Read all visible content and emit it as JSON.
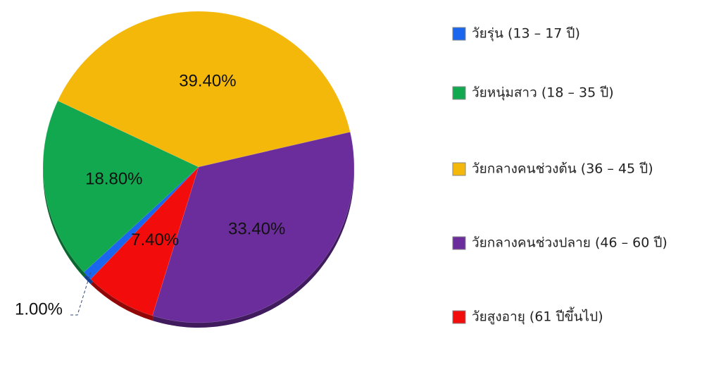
{
  "chart_data": {
    "type": "pie",
    "categories": [
      "วัยรุ่น (13 – 17 ปี)",
      "วัยหนุ่มสาว (18 – 35 ปี)",
      "วัยกลางคนช่วงต้น (36 – 45 ปี)",
      "วัยกลางคนช่วงปลาย (46 – 60 ปี)",
      "วัยสูงอายุ (61 ปีขึ้นไป)"
    ],
    "values": [
      1.0,
      18.8,
      39.4,
      33.4,
      7.4
    ],
    "value_labels": [
      "1.00%",
      "18.80%",
      "39.40%",
      "33.40%",
      "7.40%"
    ],
    "colors": [
      "#1a66ee",
      "#12a84f",
      "#f4b80a",
      "#6b2d9b",
      "#f20c0c"
    ],
    "legend": "right"
  }
}
